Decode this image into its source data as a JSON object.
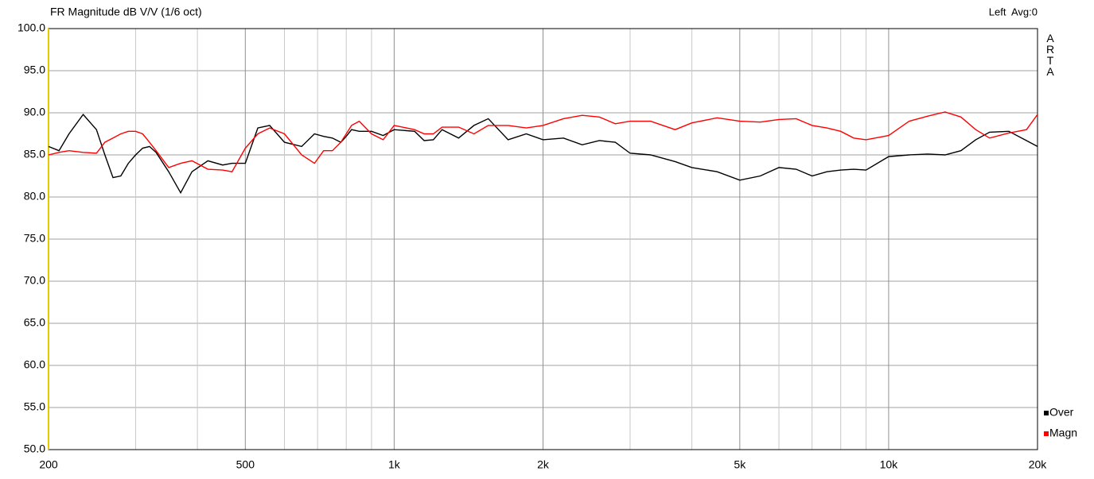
{
  "chart_data": {
    "type": "line",
    "title": "FR Magnitude dB V/V (1/6 oct)",
    "status": "Left  Avg:0",
    "brand": "ARTA",
    "log_x": true,
    "grid": true,
    "legend": "lower right",
    "x": [
      200,
      210,
      220,
      235,
      250,
      260,
      270,
      280,
      290,
      300,
      310,
      320,
      330,
      350,
      370,
      390,
      420,
      450,
      470,
      500,
      530,
      560,
      600,
      650,
      690,
      720,
      750,
      780,
      800,
      820,
      850,
      900,
      950,
      1000,
      1100,
      1150,
      1200,
      1250,
      1350,
      1450,
      1550,
      1700,
      1850,
      2000,
      2200,
      2400,
      2600,
      2800,
      3000,
      3300,
      3700,
      4000,
      4500,
      5000,
      5500,
      6000,
      6500,
      7000,
      7500,
      8000,
      8500,
      9000,
      10000,
      11000,
      12000,
      13000,
      14000,
      15000,
      16000,
      17500,
      19000,
      20000
    ],
    "series": [
      {
        "name": "Over",
        "color": "#000000",
        "values": [
          86,
          85.5,
          87.5,
          89.8,
          88,
          85,
          82.3,
          82.5,
          84,
          85,
          85.8,
          86,
          85.3,
          83,
          80.5,
          83,
          84.3,
          83.8,
          84,
          84,
          88.2,
          88.5,
          86.5,
          86,
          87.5,
          87.2,
          87,
          86.5,
          87.2,
          88,
          87.8,
          87.8,
          87.3,
          88,
          87.8,
          86.7,
          86.8,
          88,
          87,
          88.5,
          89.3,
          86.8,
          87.5,
          86.8,
          87,
          86.2,
          86.7,
          86.5,
          85.2,
          85,
          84.2,
          83.5,
          83,
          82,
          82.5,
          83.5,
          83.3,
          82.5,
          83,
          83.2,
          83.3,
          83.2,
          84.8,
          85,
          85.1,
          85,
          85.5,
          86.8,
          87.7,
          87.8,
          86.7,
          86
        ]
      },
      {
        "name": "Magn",
        "color": "#ff0000",
        "values": [
          85,
          85.3,
          85.5,
          85.3,
          85.2,
          86.5,
          87,
          87.5,
          87.8,
          87.8,
          87.5,
          86.5,
          85.5,
          83.5,
          84,
          84.3,
          83.3,
          83.2,
          83,
          85.8,
          87.5,
          88.2,
          87.5,
          85,
          84,
          85.5,
          85.5,
          86.5,
          87.5,
          88.5,
          89,
          87.5,
          86.8,
          88.5,
          88,
          87.5,
          87.5,
          88.3,
          88.3,
          87.5,
          88.5,
          88.5,
          88.2,
          88.5,
          89.3,
          89.7,
          89.5,
          88.7,
          89,
          89,
          88,
          88.8,
          89.4,
          89,
          88.9,
          89.2,
          89.3,
          88.5,
          88.2,
          87.8,
          87,
          86.8,
          87.3,
          89,
          89.6,
          90.1,
          89.5,
          88,
          87,
          87.6,
          88,
          89.8
        ]
      }
    ],
    "xlim": [
      200,
      20000
    ],
    "xticks": [
      200,
      500,
      {
        "value": 1000,
        "label": "1k"
      },
      {
        "value": 2000,
        "label": "2k"
      },
      {
        "value": 5000,
        "label": "5k"
      },
      {
        "value": 10000,
        "label": "10k"
      },
      {
        "value": 20000,
        "label": "20k"
      }
    ],
    "xminorticks": [
      300,
      400,
      600,
      700,
      800,
      900,
      3000,
      4000,
      6000,
      7000,
      8000,
      9000
    ],
    "ylim": [
      50,
      100
    ],
    "yticks": [
      {
        "value": 50,
        "label": "50.0"
      },
      {
        "value": 55,
        "label": "55.0"
      },
      {
        "value": 60,
        "label": "60.0"
      },
      {
        "value": 65,
        "label": "65.0"
      },
      {
        "value": 70,
        "label": "70.0"
      },
      {
        "value": 75,
        "label": "75.0"
      },
      {
        "value": 80,
        "label": "80.0"
      },
      {
        "value": 85,
        "label": "85.0"
      },
      {
        "value": 90,
        "label": "90.0"
      },
      {
        "value": 95,
        "label": "95.0"
      },
      {
        "value": 100,
        "label": "100.0"
      }
    ]
  }
}
